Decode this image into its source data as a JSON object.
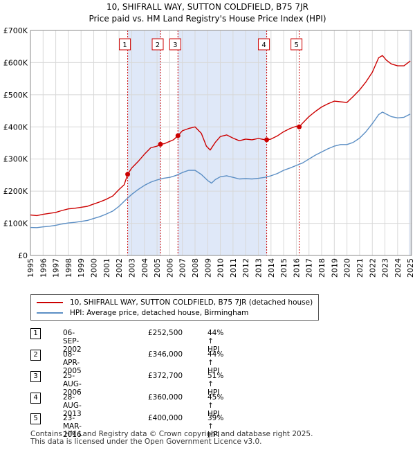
{
  "title": {
    "line1": "10, SHIFRALL WAY, SUTTON COLDFIELD, B75 7JR",
    "line2": "Price paid vs. HM Land Registry's House Price Index (HPI)"
  },
  "chart_data": {
    "type": "line",
    "title": "10, SHIFRALL WAY, SUTTON COLDFIELD, B75 7JR — Price paid vs. HM Land Registry's House Price Index (HPI)",
    "xlim": [
      1995,
      2025.1
    ],
    "ylim": [
      0,
      700000
    ],
    "x_ticks": [
      1995,
      1996,
      1997,
      1998,
      1999,
      2000,
      2001,
      2002,
      2003,
      2004,
      2005,
      2006,
      2007,
      2008,
      2009,
      2010,
      2011,
      2012,
      2013,
      2014,
      2015,
      2016,
      2017,
      2018,
      2019,
      2020,
      2021,
      2022,
      2023,
      2024,
      2025
    ],
    "y_ticks": [
      {
        "value": 0,
        "label": "£0"
      },
      {
        "value": 100000,
        "label": "£100K"
      },
      {
        "value": 200000,
        "label": "£200K"
      },
      {
        "value": 300000,
        "label": "£300K"
      },
      {
        "value": 400000,
        "label": "£400K"
      },
      {
        "value": 500000,
        "label": "£500K"
      },
      {
        "value": 600000,
        "label": "£600K"
      },
      {
        "value": 700000,
        "label": "£700K"
      }
    ],
    "grid": true,
    "series": [
      {
        "name": "10, SHIFRALL WAY, SUTTON COLDFIELD, B75 7JR (detached house)",
        "color": "#cc0000",
        "points": [
          [
            1995.0,
            126000
          ],
          [
            1995.5,
            124000
          ],
          [
            1996.0,
            128000
          ],
          [
            1996.5,
            131000
          ],
          [
            1997.0,
            134000
          ],
          [
            1997.5,
            140000
          ],
          [
            1998.0,
            145000
          ],
          [
            1998.5,
            147000
          ],
          [
            1999.0,
            150000
          ],
          [
            1999.5,
            153000
          ],
          [
            2000.0,
            160000
          ],
          [
            2000.5,
            167000
          ],
          [
            2001.0,
            175000
          ],
          [
            2001.5,
            185000
          ],
          [
            2002.0,
            205000
          ],
          [
            2002.4,
            220000
          ],
          [
            2002.68,
            252500
          ],
          [
            2003.0,
            272000
          ],
          [
            2003.5,
            292000
          ],
          [
            2004.0,
            315000
          ],
          [
            2004.5,
            335000
          ],
          [
            2005.0,
            340000
          ],
          [
            2005.27,
            346000
          ],
          [
            2005.6,
            348000
          ],
          [
            2006.0,
            355000
          ],
          [
            2006.3,
            360000
          ],
          [
            2006.65,
            372700
          ],
          [
            2007.0,
            388000
          ],
          [
            2007.5,
            395000
          ],
          [
            2008.0,
            400000
          ],
          [
            2008.5,
            380000
          ],
          [
            2008.9,
            340000
          ],
          [
            2009.2,
            328000
          ],
          [
            2009.6,
            352000
          ],
          [
            2010.0,
            370000
          ],
          [
            2010.5,
            375000
          ],
          [
            2011.0,
            365000
          ],
          [
            2011.5,
            357000
          ],
          [
            2012.0,
            362000
          ],
          [
            2012.5,
            360000
          ],
          [
            2013.0,
            364000
          ],
          [
            2013.4,
            361000
          ],
          [
            2013.66,
            360000
          ],
          [
            2014.0,
            362000
          ],
          [
            2014.5,
            372000
          ],
          [
            2015.0,
            385000
          ],
          [
            2015.5,
            395000
          ],
          [
            2016.0,
            402000
          ],
          [
            2016.23,
            400000
          ],
          [
            2016.5,
            412000
          ],
          [
            2017.0,
            432000
          ],
          [
            2017.5,
            448000
          ],
          [
            2018.0,
            462000
          ],
          [
            2018.5,
            472000
          ],
          [
            2019.0,
            480000
          ],
          [
            2019.5,
            478000
          ],
          [
            2020.0,
            476000
          ],
          [
            2020.5,
            495000
          ],
          [
            2021.0,
            515000
          ],
          [
            2021.5,
            540000
          ],
          [
            2022.0,
            570000
          ],
          [
            2022.5,
            615000
          ],
          [
            2022.8,
            622000
          ],
          [
            2023.1,
            608000
          ],
          [
            2023.5,
            596000
          ],
          [
            2024.0,
            590000
          ],
          [
            2024.5,
            590000
          ],
          [
            2025.0,
            605000
          ]
        ]
      },
      {
        "name": "HPI: Average price, detached house, Birmingham",
        "color": "#5b8ec4",
        "points": [
          [
            1995.0,
            87000
          ],
          [
            1995.5,
            86500
          ],
          [
            1996.0,
            89000
          ],
          [
            1996.5,
            91000
          ],
          [
            1997.0,
            94000
          ],
          [
            1997.5,
            98000
          ],
          [
            1998.0,
            101000
          ],
          [
            1998.5,
            103000
          ],
          [
            1999.0,
            106000
          ],
          [
            1999.5,
            109000
          ],
          [
            2000.0,
            115000
          ],
          [
            2000.5,
            121000
          ],
          [
            2001.0,
            129000
          ],
          [
            2001.5,
            138000
          ],
          [
            2002.0,
            153000
          ],
          [
            2002.5,
            172000
          ],
          [
            2003.0,
            190000
          ],
          [
            2003.5,
            205000
          ],
          [
            2004.0,
            218000
          ],
          [
            2004.5,
            228000
          ],
          [
            2005.0,
            235000
          ],
          [
            2005.5,
            240000
          ],
          [
            2006.0,
            243000
          ],
          [
            2006.5,
            249000
          ],
          [
            2007.0,
            258000
          ],
          [
            2007.5,
            265000
          ],
          [
            2008.0,
            265000
          ],
          [
            2008.5,
            252000
          ],
          [
            2009.0,
            233000
          ],
          [
            2009.3,
            225000
          ],
          [
            2009.6,
            236000
          ],
          [
            2010.0,
            245000
          ],
          [
            2010.5,
            248000
          ],
          [
            2011.0,
            243000
          ],
          [
            2011.5,
            238000
          ],
          [
            2012.0,
            239000
          ],
          [
            2012.5,
            238000
          ],
          [
            2013.0,
            240000
          ],
          [
            2013.5,
            243000
          ],
          [
            2014.0,
            248000
          ],
          [
            2014.5,
            255000
          ],
          [
            2015.0,
            265000
          ],
          [
            2015.5,
            272000
          ],
          [
            2016.0,
            280000
          ],
          [
            2016.5,
            288000
          ],
          [
            2017.0,
            300000
          ],
          [
            2017.5,
            312000
          ],
          [
            2018.0,
            322000
          ],
          [
            2018.5,
            332000
          ],
          [
            2019.0,
            340000
          ],
          [
            2019.5,
            345000
          ],
          [
            2020.0,
            345000
          ],
          [
            2020.5,
            352000
          ],
          [
            2021.0,
            365000
          ],
          [
            2021.5,
            385000
          ],
          [
            2022.0,
            410000
          ],
          [
            2022.5,
            438000
          ],
          [
            2022.8,
            446000
          ],
          [
            2023.1,
            440000
          ],
          [
            2023.5,
            432000
          ],
          [
            2024.0,
            428000
          ],
          [
            2024.5,
            430000
          ],
          [
            2025.0,
            440000
          ]
        ]
      }
    ],
    "sales": [
      {
        "id": "1",
        "x": 2002.68,
        "value": 252500
      },
      {
        "id": "2",
        "x": 2005.27,
        "value": 346000
      },
      {
        "id": "3",
        "x": 2006.65,
        "value": 372700
      },
      {
        "id": "4",
        "x": 2013.66,
        "value": 360000
      },
      {
        "id": "5",
        "x": 2016.23,
        "value": 400000
      }
    ]
  },
  "legend": {
    "items": [
      {
        "label": "10, SHIFRALL WAY, SUTTON COLDFIELD, B75 7JR (detached house)",
        "color": "#cc0000"
      },
      {
        "label": "HPI: Average price, detached house, Birmingham",
        "color": "#5b8ec4"
      }
    ]
  },
  "sales_table": [
    {
      "id": "1",
      "date": "06-SEP-2002",
      "price": "£252,500",
      "hpi": "44% ↑ HPI"
    },
    {
      "id": "2",
      "date": "08-APR-2005",
      "price": "£346,000",
      "hpi": "44% ↑ HPI"
    },
    {
      "id": "3",
      "date": "25-AUG-2006",
      "price": "£372,700",
      "hpi": "51% ↑ HPI"
    },
    {
      "id": "4",
      "date": "28-AUG-2013",
      "price": "£360,000",
      "hpi": "45% ↑ HPI"
    },
    {
      "id": "5",
      "date": "23-MAR-2016",
      "price": "£400,000",
      "hpi": "39% ↑ HPI"
    }
  ],
  "footer": {
    "line1": "Contains HM Land Registry data © Crown copyright and database right 2025.",
    "line2": "This data is licensed under the Open Government Licence v3.0."
  },
  "colors": {
    "sale_band": "#dfe8f8",
    "grid": "#d8d8d8",
    "marker": "#cc0000"
  }
}
